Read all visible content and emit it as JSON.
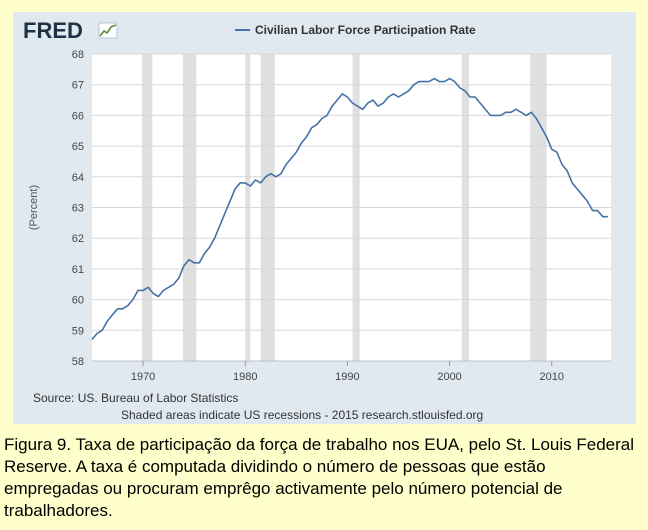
{
  "logo": {
    "text": "FRED"
  },
  "colors": {
    "line": "#4572a7",
    "recession": "#e0e0e0",
    "plot_bg": "#ffffff",
    "panel_bg": "#e1e9f0",
    "caption_bg": "#ffffcc"
  },
  "source": "Source: US. Bureau of Labor Statistics",
  "footnote": "Shaded areas indicate US recessions - 2015 research.stlouisfed.org",
  "caption": "Figura 9.  Taxa de participação da força de trabalho nos EUA, pelo St. Louis Federal Reserve.  A taxa é computada dividindo o número de pessoas que estão empregadas ou procuram emprêgo activamente pelo número potencial de trabalhadores.",
  "chart_data": {
    "type": "line",
    "title": "",
    "xlabel": "",
    "ylabel": "(Percent)",
    "xlim": [
      1965,
      2015.8
    ],
    "ylim": [
      58,
      68
    ],
    "grid": true,
    "legend": "top",
    "x_ticks": [
      "1970",
      "1980",
      "1990",
      "2000",
      "2010"
    ],
    "y_ticks": [
      "58",
      "59",
      "60",
      "61",
      "62",
      "63",
      "64",
      "65",
      "66",
      "67",
      "68"
    ],
    "recessions": [
      [
        1969.9,
        1970.9
      ],
      [
        1973.9,
        1975.2
      ],
      [
        1980.0,
        1980.5
      ],
      [
        1981.5,
        1982.9
      ],
      [
        1990.5,
        1991.2
      ],
      [
        2001.2,
        2001.9
      ],
      [
        2007.9,
        2009.5
      ]
    ],
    "series": [
      {
        "name": "Civilian Labor Force Participation Rate",
        "x": [
          1965.0,
          1965.5,
          1966.0,
          1966.5,
          1967.0,
          1967.5,
          1968.0,
          1968.5,
          1969.0,
          1969.5,
          1970.0,
          1970.5,
          1971.0,
          1971.5,
          1972.0,
          1972.5,
          1973.0,
          1973.5,
          1974.0,
          1974.5,
          1975.0,
          1975.5,
          1976.0,
          1976.5,
          1977.0,
          1977.5,
          1978.0,
          1978.5,
          1979.0,
          1979.5,
          1980.0,
          1980.5,
          1981.0,
          1981.5,
          1982.0,
          1982.5,
          1983.0,
          1983.5,
          1984.0,
          1984.5,
          1985.0,
          1985.5,
          1986.0,
          1986.5,
          1987.0,
          1987.5,
          1988.0,
          1988.5,
          1989.0,
          1989.5,
          1990.0,
          1990.5,
          1991.0,
          1991.5,
          1992.0,
          1992.5,
          1993.0,
          1993.5,
          1994.0,
          1994.5,
          1995.0,
          1995.5,
          1996.0,
          1996.5,
          1997.0,
          1997.5,
          1998.0,
          1998.5,
          1999.0,
          1999.5,
          2000.0,
          2000.5,
          2001.0,
          2001.5,
          2002.0,
          2002.5,
          2003.0,
          2003.5,
          2004.0,
          2004.5,
          2005.0,
          2005.5,
          2006.0,
          2006.5,
          2007.0,
          2007.5,
          2008.0,
          2008.5,
          2009.0,
          2009.5,
          2010.0,
          2010.5,
          2011.0,
          2011.5,
          2012.0,
          2012.5,
          2013.0,
          2013.5,
          2014.0,
          2014.5,
          2015.0,
          2015.5
        ],
        "values": [
          58.7,
          58.9,
          59.0,
          59.3,
          59.5,
          59.7,
          59.7,
          59.8,
          60.0,
          60.3,
          60.3,
          60.4,
          60.2,
          60.1,
          60.3,
          60.4,
          60.5,
          60.7,
          61.1,
          61.3,
          61.2,
          61.2,
          61.5,
          61.7,
          62.0,
          62.4,
          62.8,
          63.2,
          63.6,
          63.8,
          63.8,
          63.7,
          63.9,
          63.8,
          64.0,
          64.1,
          64.0,
          64.1,
          64.4,
          64.6,
          64.8,
          65.1,
          65.3,
          65.6,
          65.7,
          65.9,
          66.0,
          66.3,
          66.5,
          66.7,
          66.6,
          66.4,
          66.3,
          66.2,
          66.4,
          66.5,
          66.3,
          66.4,
          66.6,
          66.7,
          66.6,
          66.7,
          66.8,
          67.0,
          67.1,
          67.1,
          67.1,
          67.2,
          67.1,
          67.1,
          67.2,
          67.1,
          66.9,
          66.8,
          66.6,
          66.6,
          66.4,
          66.2,
          66.0,
          66.0,
          66.0,
          66.1,
          66.1,
          66.2,
          66.1,
          66.0,
          66.1,
          65.9,
          65.6,
          65.3,
          64.9,
          64.8,
          64.4,
          64.2,
          63.8,
          63.6,
          63.4,
          63.2,
          62.9,
          62.9,
          62.7,
          62.7
        ]
      }
    ]
  }
}
